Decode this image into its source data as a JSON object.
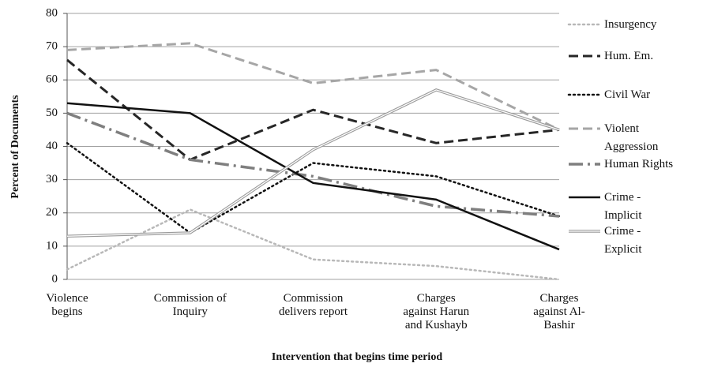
{
  "chart_data": {
    "type": "line",
    "x_label": "Intervention that begins time period",
    "y_label": "Percent of Documents",
    "categories": [
      "Violence begins",
      "Commission of Inquiry",
      "Commission delivers report",
      "Charges against Harun and Kushayb",
      "Charges against Al-Bashir"
    ],
    "series": [
      {
        "name": "Insurgency",
        "color": "#b8b8b8",
        "style": "dotted",
        "values": [
          3,
          21,
          6,
          4,
          0
        ]
      },
      {
        "name": "Hum. Em.",
        "color": "#262626",
        "style": "dashed",
        "values": [
          66,
          36,
          51,
          41,
          45
        ]
      },
      {
        "name": "Civil War",
        "color": "#111111",
        "style": "dotted",
        "values": [
          41,
          14,
          35,
          31,
          19
        ]
      },
      {
        "name": "Violent Aggression",
        "color": "#a6a6a6",
        "style": "dashed",
        "values": [
          69,
          71,
          59,
          63,
          45
        ]
      },
      {
        "name": "Human Rights",
        "color": "#7f7f7f",
        "style": "dash-dot",
        "values": [
          50,
          36,
          31,
          22,
          19
        ]
      },
      {
        "name": "Crime - Implicit",
        "color": "#111111",
        "style": "solid",
        "values": [
          53,
          50,
          29,
          24,
          9
        ]
      },
      {
        "name": "Crime - Explicit",
        "color": "#9a9a9a",
        "style": "double",
        "values": [
          13,
          14,
          39,
          57,
          45
        ]
      }
    ],
    "ylim": [
      0,
      80
    ],
    "yticks": [
      0,
      10,
      20,
      30,
      40,
      50,
      60,
      70,
      80
    ],
    "grid": true,
    "legend": "right"
  }
}
